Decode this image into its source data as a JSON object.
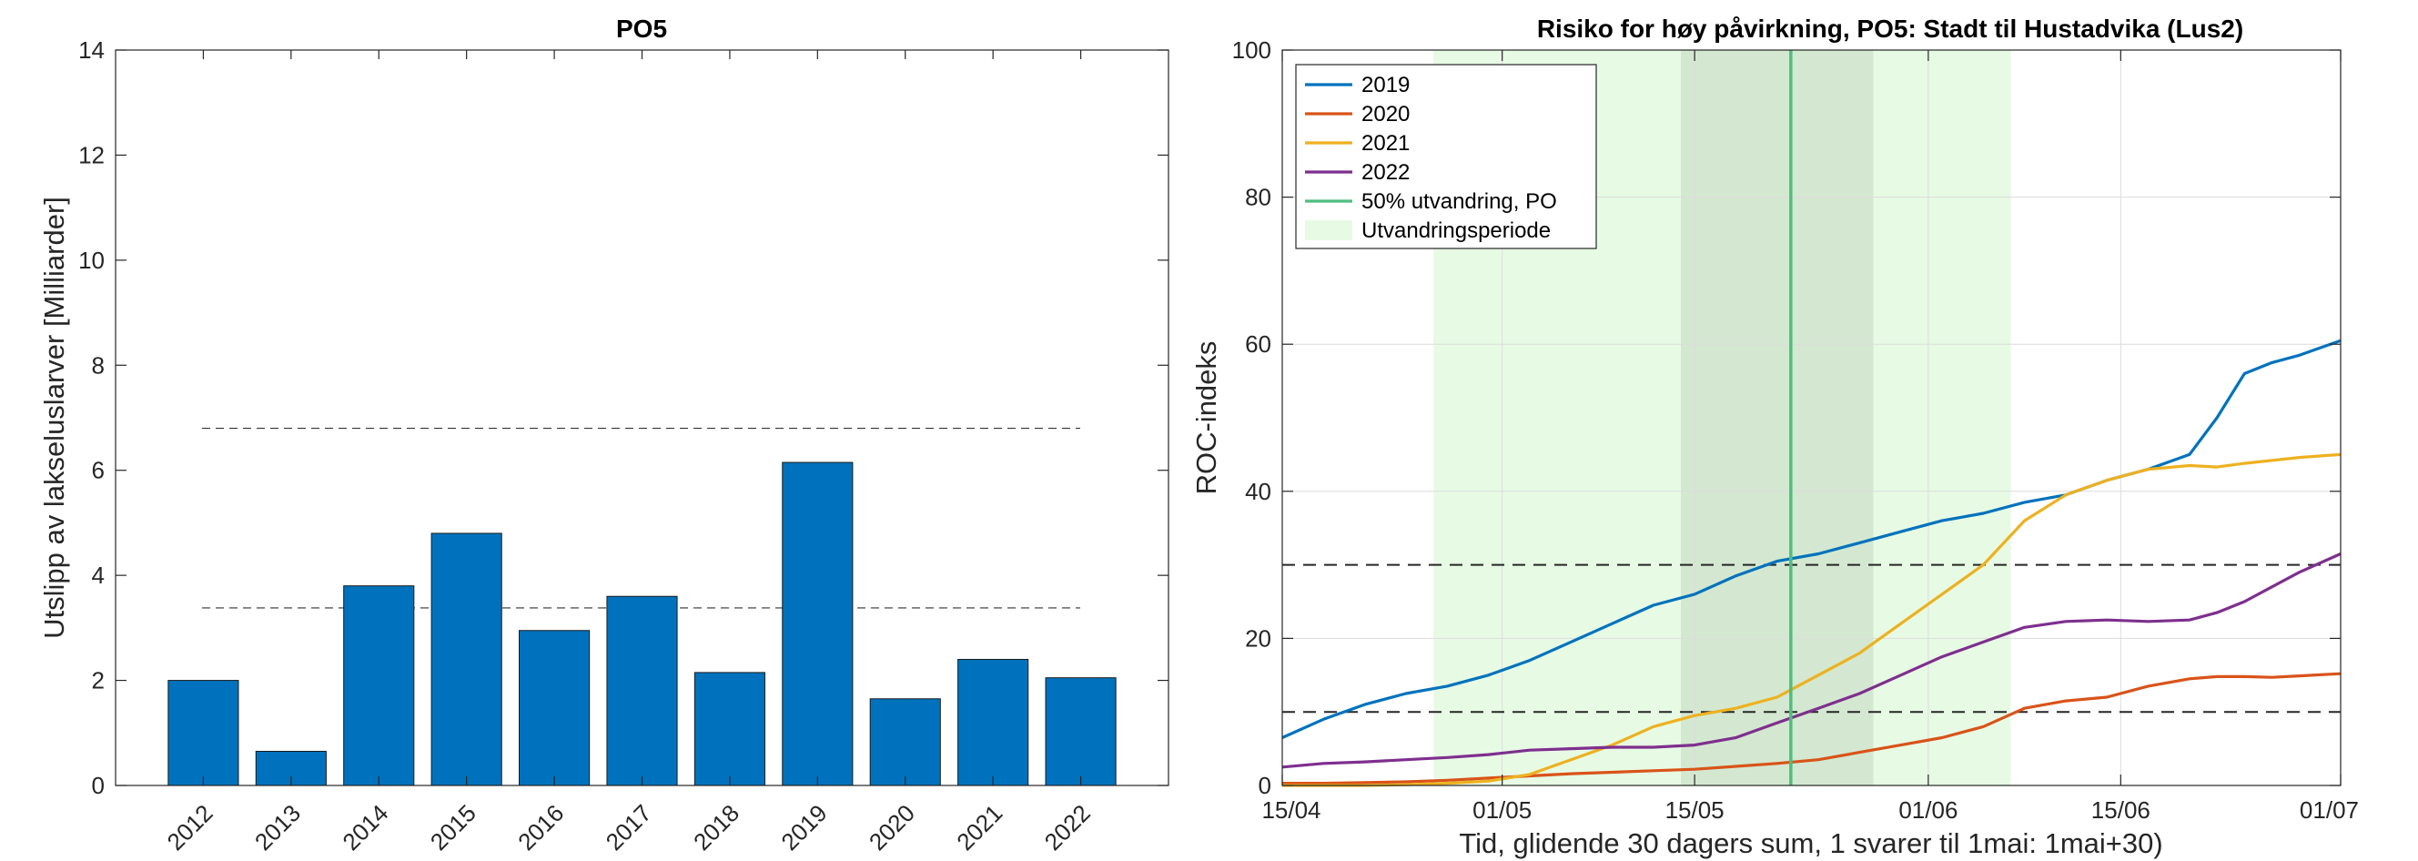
{
  "charts": [
    {
      "type": "bar",
      "title": "PO5",
      "ylabel": "Utslipp av lakseluslarver [Milliarder]",
      "xlabel": "",
      "ylim": [
        0,
        14
      ],
      "yticks": [
        0,
        2,
        4,
        6,
        8,
        10,
        12,
        14
      ],
      "categories": [
        "2012",
        "2013",
        "2014",
        "2015",
        "2016",
        "2017",
        "2018",
        "2019",
        "2020",
        "2021",
        "2022"
      ],
      "values": [
        2.0,
        0.65,
        3.8,
        4.8,
        2.95,
        3.6,
        2.15,
        6.15,
        1.65,
        2.4,
        2.05
      ],
      "bar_color": "#0072BD",
      "reference_lines": [
        6.8,
        3.38
      ],
      "grid": false
    },
    {
      "type": "line",
      "title": "Risiko for høy påvirkning, PO5: Stadt til Hustadvika (Lus2)",
      "ylabel": "ROC-indeks",
      "xlabel": "Tid, glidende 30 dagers sum, 1 svarer til 1mai: 1mai+30)",
      "xlim": [
        "15/04",
        "01/07"
      ],
      "ylim": [
        0,
        100
      ],
      "xticks": [
        "15/04",
        "01/05",
        "15/05",
        "01/06",
        "15/06",
        "01/07"
      ],
      "yticks": [
        0,
        20,
        40,
        60,
        80,
        100
      ],
      "grid": true,
      "legend_position": "top-left",
      "legend": [
        "2019",
        "2020",
        "2021",
        "2022",
        "50% utvandring, PO",
        "Utvandringsperiode"
      ],
      "vertical_line_date": "22/05",
      "utvandringsperiode": [
        "26/04",
        "07/06"
      ],
      "inner_period": [
        "14/05",
        "28/05"
      ],
      "reference_lines": [
        30,
        10
      ],
      "x": [
        "15/04",
        "18/04",
        "21/04",
        "24/04",
        "27/04",
        "30/04",
        "03/05",
        "06/05",
        "09/05",
        "12/05",
        "15/05",
        "18/05",
        "21/05",
        "24/05",
        "27/05",
        "30/05",
        "02/06",
        "05/06",
        "08/06",
        "11/06",
        "14/06",
        "17/06",
        "20/06",
        "22/06",
        "24/06",
        "26/06",
        "28/06",
        "01/07"
      ],
      "series": [
        {
          "name": "2019",
          "color": "#0072BD",
          "values": [
            6.5,
            9,
            11,
            12.5,
            13.5,
            15,
            17,
            19.5,
            22,
            24.5,
            26,
            28.5,
            30.5,
            31.5,
            33,
            34.5,
            36,
            37,
            38.5,
            39.5,
            41.5,
            43,
            45,
            50,
            56,
            57.5,
            58.5,
            60.5
          ]
        },
        {
          "name": "2020",
          "color": "#D95319",
          "values": [
            0.3,
            0.3,
            0.4,
            0.5,
            0.7,
            1,
            1.3,
            1.6,
            1.8,
            2,
            2.2,
            2.6,
            3,
            3.5,
            4.5,
            5.5,
            6.5,
            8,
            10.5,
            11.5,
            12,
            13.5,
            14.5,
            14.8,
            14.8,
            14.7,
            14.9,
            15.2
          ]
        },
        {
          "name": "2021",
          "color": "#EDB120",
          "values": [
            0,
            0,
            0,
            0.1,
            0.3,
            0.6,
            1.5,
            3.5,
            5.5,
            8,
            9.5,
            10.5,
            12,
            15,
            18,
            22,
            26,
            30,
            36,
            39.5,
            41.5,
            43,
            43.5,
            43.3,
            43.8,
            44.2,
            44.6,
            45
          ]
        },
        {
          "name": "2022",
          "color": "#7E2F8E",
          "values": [
            2.5,
            3,
            3.2,
            3.5,
            3.8,
            4.2,
            4.8,
            5,
            5.2,
            5.2,
            5.5,
            6.5,
            8.5,
            10.5,
            12.5,
            15,
            17.5,
            19.5,
            21.5,
            22.3,
            22.5,
            22.3,
            22.5,
            23.5,
            25,
            27,
            29,
            31.5
          ]
        }
      ],
      "line_color_50pct": "#4DBE7E"
    }
  ]
}
